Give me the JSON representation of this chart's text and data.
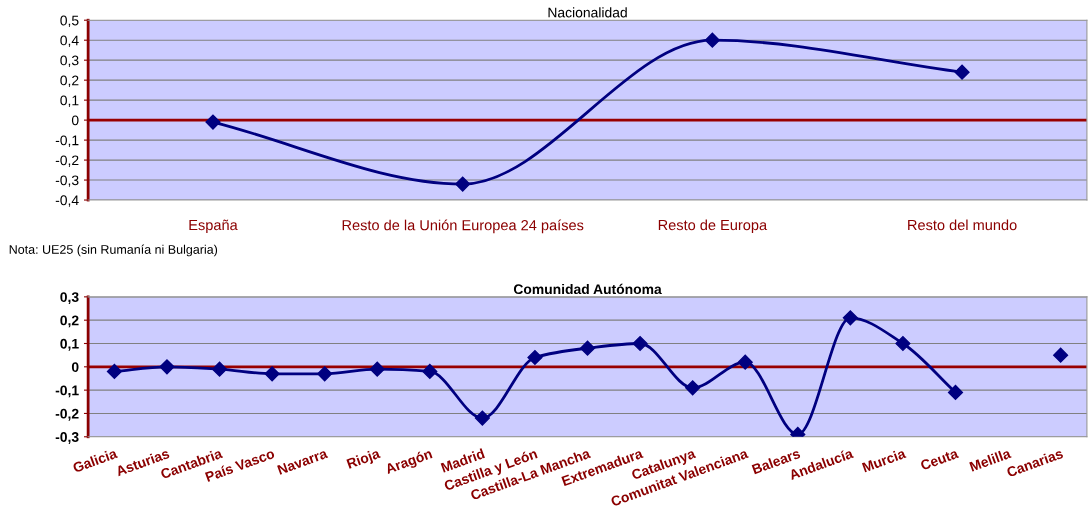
{
  "chart_data": [
    {
      "type": "line",
      "title": "Nacionalidad",
      "categories": [
        "España",
        "Resto de la Unión Europea 24 países",
        "Resto de Europa",
        "Resto del mundo"
      ],
      "series": [
        {
          "color": "#000080",
          "values": [
            -0.01,
            -0.32,
            0.4,
            0.24
          ]
        }
      ],
      "ylim": [
        -0.4,
        0.5
      ],
      "yticks": [
        {
          "value": -0.4,
          "label": "-0,4"
        },
        {
          "value": -0.3,
          "label": "-0,3"
        },
        {
          "value": -0.2,
          "label": "-0,2"
        },
        {
          "value": -0.1,
          "label": "-0,1"
        },
        {
          "value": 0,
          "label": "0"
        },
        {
          "value": 0.1,
          "label": "0,1"
        },
        {
          "value": 0.2,
          "label": "0,2"
        },
        {
          "value": 0.3,
          "label": "0,3"
        },
        {
          "value": 0.4,
          "label": "0,4"
        },
        {
          "value": 0.5,
          "label": "0,5"
        }
      ],
      "ref_lines": [
        {
          "axis": "y",
          "value": 0,
          "color": "#990000"
        }
      ],
      "grid": "y",
      "marker": "diamond",
      "line_style": "solid",
      "legend": false,
      "annotations": [
        "Nota: UE25 (sin Rumanía ni Bulgaria)"
      ]
    },
    {
      "type": "line",
      "title": "Comunidad Autónoma",
      "categories": [
        "Galicia",
        "Asturias",
        "Cantabria",
        "País Vasco",
        "Navarra",
        "Rioja",
        "Aragón",
        "Madrid",
        "Castilla y León",
        "Castilla-La Mancha",
        "Extremadura",
        "Catalunya",
        "Comunitat Valenciana",
        "Balears",
        "Andalucía",
        "Murcia",
        "Ceuta",
        "Melilla",
        "Canarias"
      ],
      "series": [
        {
          "color": "#000080",
          "values": [
            -0.02,
            0.0,
            -0.01,
            -0.03,
            -0.03,
            -0.01,
            -0.02,
            -0.22,
            0.04,
            0.08,
            0.1,
            -0.09,
            0.02,
            -0.29,
            0.21,
            0.1,
            -0.11,
            null,
            0.05
          ]
        }
      ],
      "ylim": [
        -0.3,
        0.3
      ],
      "yticks": [
        {
          "value": -0.3,
          "label": "-0,3"
        },
        {
          "value": -0.2,
          "label": "-0,2"
        },
        {
          "value": -0.1,
          "label": "-0,1"
        },
        {
          "value": 0,
          "label": "0"
        },
        {
          "value": 0.1,
          "label": "0,1"
        },
        {
          "value": 0.2,
          "label": "0,2"
        },
        {
          "value": 0.3,
          "label": "0,3"
        }
      ],
      "ref_lines": [
        {
          "axis": "y",
          "value": 0,
          "color": "#990000"
        }
      ],
      "grid": "y",
      "marker": "diamond",
      "line_style": "solid",
      "legend": false
    }
  ]
}
